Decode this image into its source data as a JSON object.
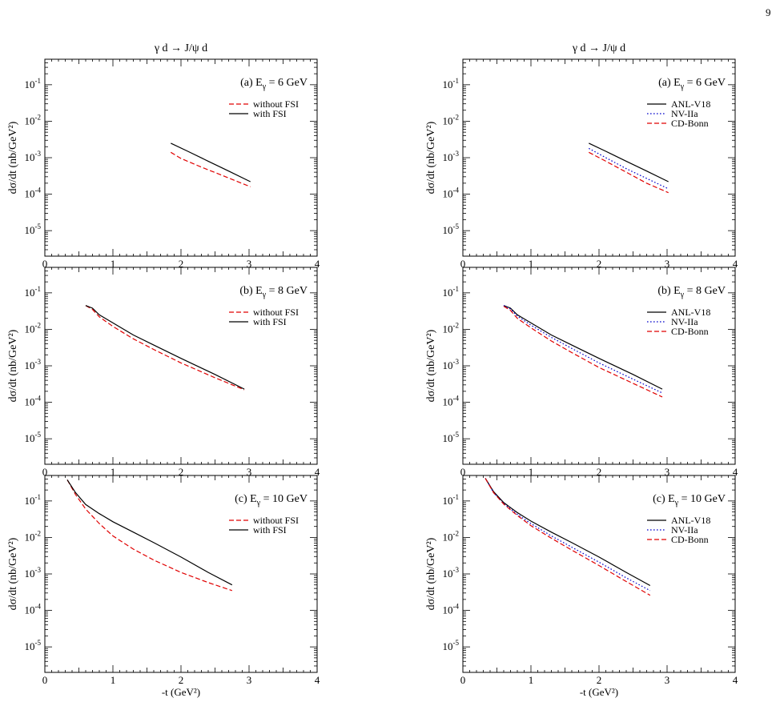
{
  "page": {
    "number": "9"
  },
  "colors": {
    "with_fsi": "#000000",
    "without_fsi": "#e00000",
    "anl": "#000000",
    "nv": "#0000cc",
    "cdbonn": "#e00000"
  },
  "chart_data": [
    {
      "id": "L1",
      "type": "line",
      "title": "γ d → J/ψ d",
      "panel_label": "(a) E",
      "panel_label_sub": "γ",
      "panel_label_tail": " = 6 GeV",
      "xlabel": "",
      "ylabel": "dσ/dt (nb/GeV²)",
      "xlim": [
        0,
        4
      ],
      "ylim": [
        2e-06,
        0.5
      ],
      "yscale": "log",
      "xticks": [
        "0",
        "1",
        "2",
        "3",
        "4"
      ],
      "yticks": [
        {
          "base": "10",
          "exp": "-1",
          "v": 0.1
        },
        {
          "base": "10",
          "exp": "-2",
          "v": 0.01
        },
        {
          "base": "10",
          "exp": "-3",
          "v": 0.001
        },
        {
          "base": "10",
          "exp": "-4",
          "v": 0.0001
        },
        {
          "base": "10",
          "exp": "-5",
          "v": 1e-05
        }
      ],
      "series": [
        {
          "name": "without FSI",
          "style": "dashed",
          "color": "#e00000",
          "x": [
            1.85,
            2.0,
            2.3,
            2.6,
            3.02
          ],
          "y": [
            0.0014,
            0.00095,
            0.00055,
            0.00033,
            0.00016
          ]
        },
        {
          "name": "with FSI",
          "style": "solid",
          "color": "#000000",
          "x": [
            1.85,
            2.1,
            2.4,
            2.7,
            3.02
          ],
          "y": [
            0.0025,
            0.0015,
            0.0008,
            0.00043,
            0.00022
          ]
        }
      ]
    },
    {
      "id": "R1",
      "type": "line",
      "title": "γ d → J/ψ d",
      "panel_label": "(a) E",
      "panel_label_sub": "γ",
      "panel_label_tail": " = 6 GeV",
      "xlabel": "",
      "ylabel": "dσ/dt (nb/GeV²)",
      "xlim": [
        0,
        4
      ],
      "ylim": [
        2e-06,
        0.5
      ],
      "yscale": "log",
      "xticks": [
        "0",
        "1",
        "2",
        "3",
        "4"
      ],
      "yticks": [
        {
          "base": "10",
          "exp": "-1",
          "v": 0.1
        },
        {
          "base": "10",
          "exp": "-2",
          "v": 0.01
        },
        {
          "base": "10",
          "exp": "-3",
          "v": 0.001
        },
        {
          "base": "10",
          "exp": "-4",
          "v": 0.0001
        },
        {
          "base": "10",
          "exp": "-5",
          "v": 1e-05
        }
      ],
      "series": [
        {
          "name": "ANL-V18",
          "style": "solid",
          "color": "#000000",
          "x": [
            1.85,
            2.1,
            2.4,
            2.7,
            3.02
          ],
          "y": [
            0.0025,
            0.0015,
            0.0008,
            0.00043,
            0.00022
          ]
        },
        {
          "name": "NV-IIa",
          "style": "dotted",
          "color": "#0000cc",
          "x": [
            1.85,
            2.1,
            2.4,
            2.7,
            3.02
          ],
          "y": [
            0.0018,
            0.001,
            0.0005,
            0.00027,
            0.00014
          ]
        },
        {
          "name": "CD-Bonn",
          "style": "dashed",
          "color": "#e00000",
          "x": [
            1.85,
            2.1,
            2.4,
            2.7,
            3.02
          ],
          "y": [
            0.0014,
            0.0008,
            0.0004,
            0.0002,
            0.00011
          ]
        }
      ]
    },
    {
      "id": "L2",
      "type": "line",
      "title": "",
      "panel_label": "(b) E",
      "panel_label_sub": "γ",
      "panel_label_tail": " = 8 GeV",
      "xlabel": "",
      "ylabel": "dσ/dt (nb/GeV²)",
      "xlim": [
        0,
        4
      ],
      "ylim": [
        2e-06,
        0.5
      ],
      "yscale": "log",
      "xticks": [
        "0",
        "1",
        "2",
        "3",
        "4"
      ],
      "yticks": [
        {
          "base": "10",
          "exp": "-1",
          "v": 0.1
        },
        {
          "base": "10",
          "exp": "-2",
          "v": 0.01
        },
        {
          "base": "10",
          "exp": "-3",
          "v": 0.001
        },
        {
          "base": "10",
          "exp": "-4",
          "v": 0.0001
        },
        {
          "base": "10",
          "exp": "-5",
          "v": 1e-05
        }
      ],
      "series": [
        {
          "name": "without FSI",
          "style": "dashed",
          "color": "#e00000",
          "x": [
            0.6,
            0.7,
            0.8,
            1.0,
            1.3,
            1.6,
            2.0,
            2.5,
            2.93
          ],
          "y": [
            0.045,
            0.035,
            0.022,
            0.012,
            0.0055,
            0.0028,
            0.0012,
            0.00047,
            0.00022
          ]
        },
        {
          "name": "with FSI",
          "style": "solid",
          "color": "#000000",
          "x": [
            0.6,
            0.7,
            0.8,
            1.0,
            1.3,
            1.6,
            2.0,
            2.5,
            2.93
          ],
          "y": [
            0.045,
            0.038,
            0.025,
            0.015,
            0.007,
            0.0037,
            0.0016,
            0.00058,
            0.00023
          ]
        }
      ]
    },
    {
      "id": "R2",
      "type": "line",
      "title": "",
      "panel_label": "(b) E",
      "panel_label_sub": "γ",
      "panel_label_tail": " = 8 GeV",
      "xlabel": "",
      "ylabel": "dσ/dt (nb/GeV²)",
      "xlim": [
        0,
        4
      ],
      "ylim": [
        2e-06,
        0.5
      ],
      "yscale": "log",
      "xticks": [
        "0",
        "1",
        "2",
        "3",
        "4"
      ],
      "yticks": [
        {
          "base": "10",
          "exp": "-1",
          "v": 0.1
        },
        {
          "base": "10",
          "exp": "-2",
          "v": 0.01
        },
        {
          "base": "10",
          "exp": "-3",
          "v": 0.001
        },
        {
          "base": "10",
          "exp": "-4",
          "v": 0.0001
        },
        {
          "base": "10",
          "exp": "-5",
          "v": 1e-05
        }
      ],
      "series": [
        {
          "name": "ANL-V18",
          "style": "solid",
          "color": "#000000",
          "x": [
            0.6,
            0.7,
            0.8,
            1.0,
            1.3,
            1.6,
            2.0,
            2.5,
            2.93
          ],
          "y": [
            0.045,
            0.038,
            0.025,
            0.015,
            0.007,
            0.0037,
            0.0016,
            0.00058,
            0.00023
          ]
        },
        {
          "name": "NV-IIa",
          "style": "dotted",
          "color": "#0000cc",
          "x": [
            0.6,
            0.7,
            0.8,
            1.0,
            1.3,
            1.6,
            2.0,
            2.5,
            2.93
          ],
          "y": [
            0.045,
            0.036,
            0.023,
            0.013,
            0.006,
            0.003,
            0.0012,
            0.00043,
            0.00018
          ]
        },
        {
          "name": "CD-Bonn",
          "style": "dashed",
          "color": "#e00000",
          "x": [
            0.6,
            0.7,
            0.8,
            1.0,
            1.3,
            1.6,
            2.0,
            2.5,
            2.93
          ],
          "y": [
            0.043,
            0.033,
            0.02,
            0.011,
            0.0048,
            0.0023,
            0.0009,
            0.00033,
            0.00014
          ]
        }
      ]
    },
    {
      "id": "L3",
      "type": "line",
      "title": "",
      "panel_label": "(c) E",
      "panel_label_sub": "γ",
      "panel_label_tail": " = 10 GeV",
      "xlabel": "-t (GeV²)",
      "ylabel": "dσ/dt (nb/GeV²)",
      "xlim": [
        0,
        4
      ],
      "ylim": [
        2e-06,
        0.5
      ],
      "yscale": "log",
      "xticks": [
        "0",
        "1",
        "2",
        "3",
        "4"
      ],
      "yticks": [
        {
          "base": "10",
          "exp": "-1",
          "v": 0.1
        },
        {
          "base": "10",
          "exp": "-2",
          "v": 0.01
        },
        {
          "base": "10",
          "exp": "-3",
          "v": 0.001
        },
        {
          "base": "10",
          "exp": "-4",
          "v": 0.0001
        },
        {
          "base": "10",
          "exp": "-5",
          "v": 1e-05
        }
      ],
      "series": [
        {
          "name": "without FSI",
          "style": "dashed",
          "color": "#e00000",
          "x": [
            0.33,
            0.45,
            0.6,
            0.8,
            1.0,
            1.3,
            1.6,
            2.0,
            2.4,
            2.75
          ],
          "y": [
            0.38,
            0.15,
            0.06,
            0.024,
            0.011,
            0.0048,
            0.0024,
            0.0011,
            0.00058,
            0.00035
          ]
        },
        {
          "name": "with FSI",
          "style": "solid",
          "color": "#000000",
          "x": [
            0.33,
            0.45,
            0.6,
            0.8,
            1.0,
            1.3,
            1.6,
            2.0,
            2.4,
            2.75
          ],
          "y": [
            0.38,
            0.17,
            0.08,
            0.045,
            0.027,
            0.014,
            0.0072,
            0.0029,
            0.0011,
            0.0005
          ]
        }
      ]
    },
    {
      "id": "R3",
      "type": "line",
      "title": "",
      "panel_label": "(c) E",
      "panel_label_sub": "γ",
      "panel_label_tail": " = 10 GeV",
      "xlabel": "-t (GeV²)",
      "ylabel": "dσ/dt (nb/GeV²)",
      "xlim": [
        0,
        4
      ],
      "ylim": [
        2e-06,
        0.5
      ],
      "yscale": "log",
      "xticks": [
        "0",
        "1",
        "2",
        "3",
        "4"
      ],
      "yticks": [
        {
          "base": "10",
          "exp": "-1",
          "v": 0.1
        },
        {
          "base": "10",
          "exp": "-2",
          "v": 0.01
        },
        {
          "base": "10",
          "exp": "-3",
          "v": 0.001
        },
        {
          "base": "10",
          "exp": "-4",
          "v": 0.0001
        },
        {
          "base": "10",
          "exp": "-5",
          "v": 1e-05
        }
      ],
      "series": [
        {
          "name": "ANL-V18",
          "style": "solid",
          "color": "#000000",
          "x": [
            0.33,
            0.45,
            0.6,
            0.8,
            1.0,
            1.3,
            1.6,
            2.0,
            2.4,
            2.75
          ],
          "y": [
            0.42,
            0.18,
            0.09,
            0.048,
            0.028,
            0.014,
            0.0072,
            0.0029,
            0.0011,
            0.00048
          ]
        },
        {
          "name": "NV-IIa",
          "style": "dotted",
          "color": "#0000cc",
          "x": [
            0.33,
            0.45,
            0.6,
            0.8,
            1.0,
            1.3,
            1.6,
            2.0,
            2.4,
            2.75
          ],
          "y": [
            0.42,
            0.17,
            0.085,
            0.043,
            0.024,
            0.011,
            0.0054,
            0.0021,
            0.00078,
            0.00035
          ]
        },
        {
          "name": "CD-Bonn",
          "style": "dashed",
          "color": "#e00000",
          "x": [
            0.33,
            0.45,
            0.6,
            0.8,
            1.0,
            1.3,
            1.6,
            2.0,
            2.4,
            2.75
          ],
          "y": [
            0.42,
            0.17,
            0.082,
            0.04,
            0.021,
            0.0095,
            0.0045,
            0.0017,
            0.00062,
            0.00026
          ]
        }
      ]
    }
  ]
}
